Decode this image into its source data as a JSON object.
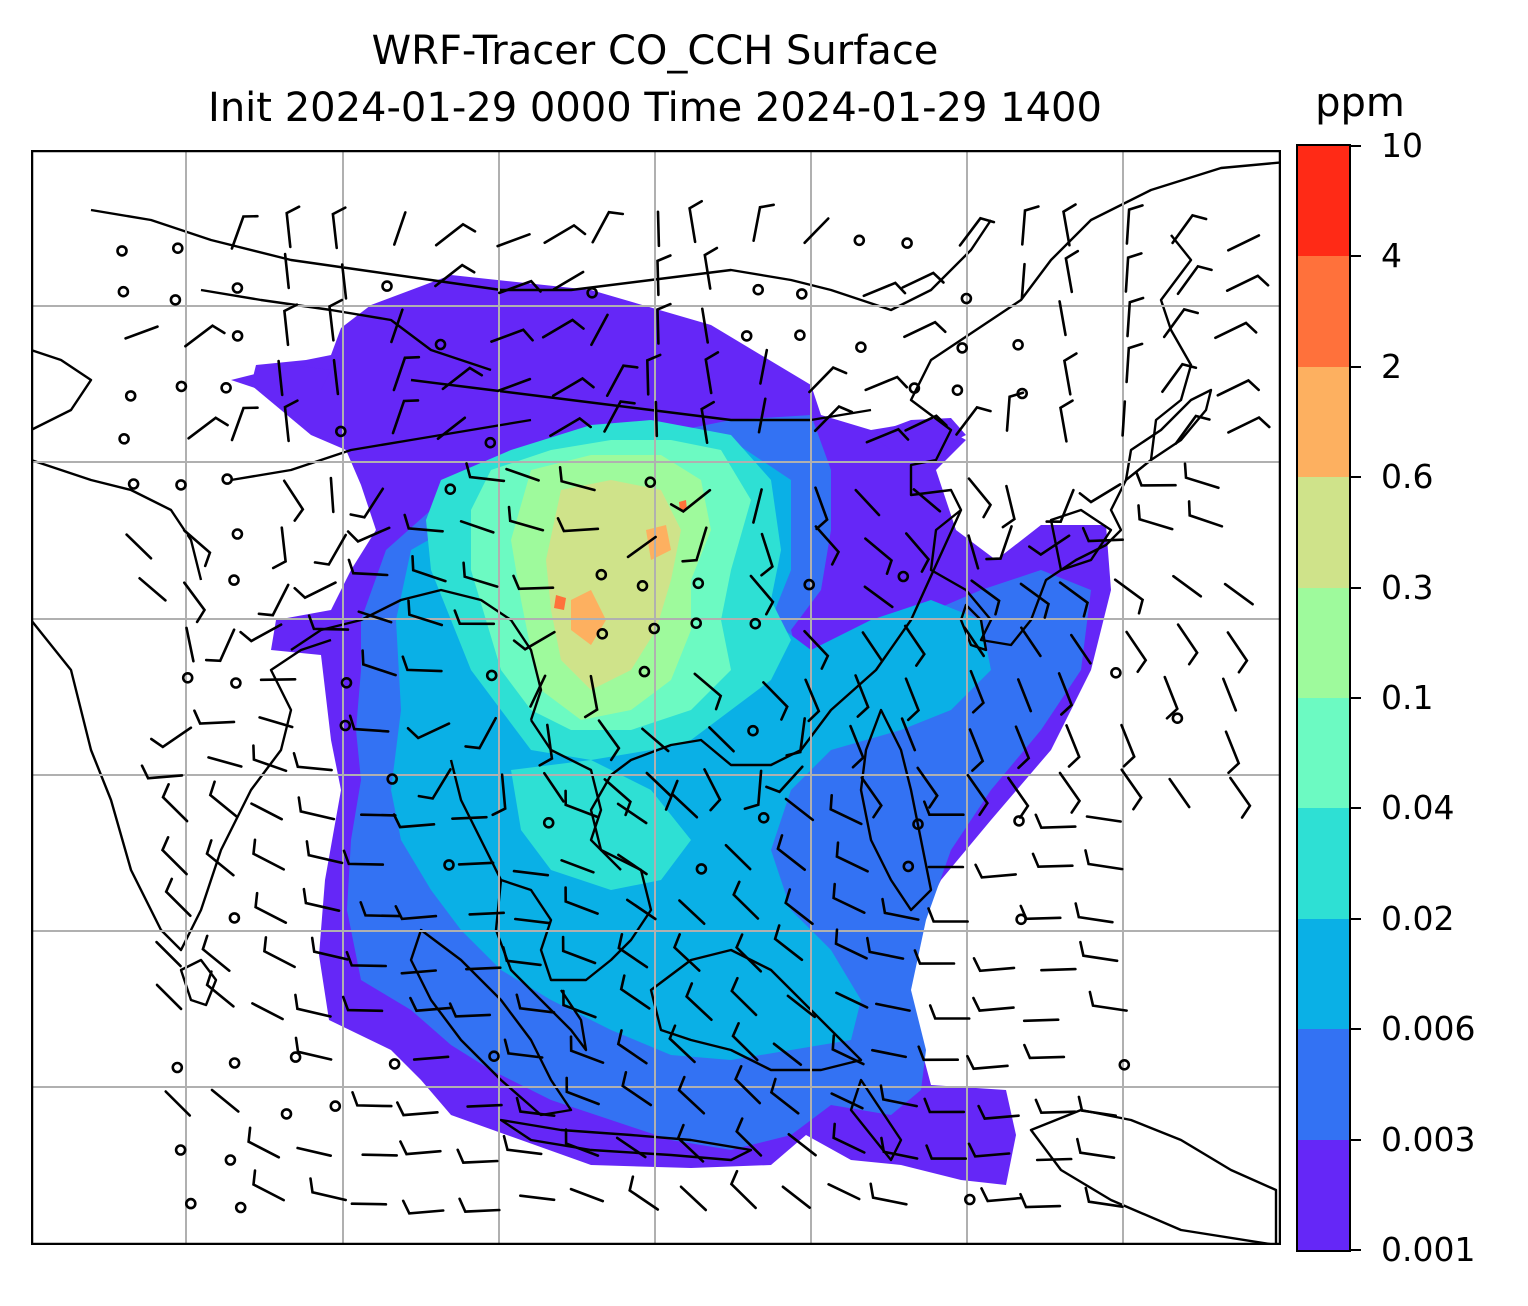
{
  "title": {
    "line1": "WRF-Tracer CO_CCH Surface",
    "line2": "Init 2024-01-29 0000 Time 2024-01-29 1400"
  },
  "colorbar": {
    "unit": "ppm",
    "ticks": [
      "0.001",
      "0.003",
      "0.006",
      "0.02",
      "0.04",
      "0.1",
      "0.3",
      "0.6",
      "2",
      "4",
      "10"
    ],
    "colors": [
      "#6527f7",
      "#3372f3",
      "#0ab0e6",
      "#2ee0d4",
      "#6cfac2",
      "#9efa9c",
      "#cfe38a",
      "#fdb060",
      "#ff713b",
      "#ff2a16"
    ]
  },
  "map": {
    "grid": true,
    "coastline_color": "#000000",
    "grid_color": "#b0b0b0",
    "field": "CO_CCH tracer surface concentration",
    "wind_barbs": true
  }
}
